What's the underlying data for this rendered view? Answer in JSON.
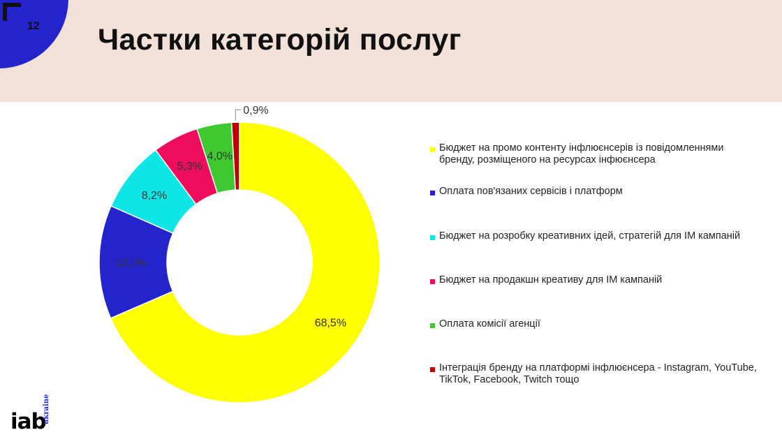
{
  "header": {
    "page_number": "12",
    "title": "Частки категорій послуг"
  },
  "logo": {
    "main_text": "iab",
    "sub_text": "ukraine"
  },
  "colors": {
    "header_bg": "#f1e1d9",
    "accent_blue": "#2424cc"
  },
  "chart_data": {
    "type": "pie",
    "variant": "donut",
    "title": "",
    "series": [
      {
        "name": "Бюджет на промо контенту інфлюєнсерів із повідомленнями бренду, розміщеного на ресурсах інфюєнсера",
        "value": 68.5,
        "label": "68,5%",
        "color": "#ffff00"
      },
      {
        "name": "Оплата пов'язаних сервісів і платформ",
        "value": 13.1,
        "label": "13,1%",
        "color": "#2424cc"
      },
      {
        "name": "Бюджет на розробку креативних ідей, стратегій для ІМ кампаній",
        "value": 8.2,
        "label": "8,2%",
        "color": "#0ee6e6"
      },
      {
        "name": "Бюджет на продакшн креативу для ІМ кампаній",
        "value": 5.3,
        "label": "5,3%",
        "color": "#ee0d5c"
      },
      {
        "name": "Оплата комісії агенції",
        "value": 4.0,
        "label": "4,0%",
        "color": "#3ec931"
      },
      {
        "name": "Інтеграція бренду на платформі інфлюєнсера - Instagram, YouTube, TikTok, Facebook, Twitch тощо",
        "value": 0.9,
        "label": "0,9%",
        "color": "#c00000"
      }
    ],
    "legend_position": "right"
  }
}
